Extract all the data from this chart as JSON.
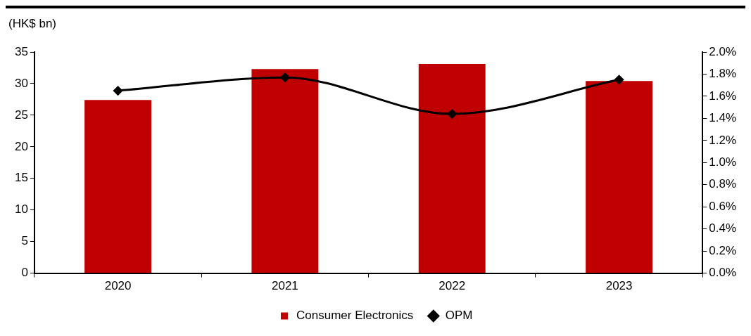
{
  "chart_data": {
    "type": "bar",
    "ylabel": "(HK$ bn)",
    "categories": [
      "2020",
      "2021",
      "2022",
      "2023"
    ],
    "series": [
      {
        "name": "Consumer Electronics",
        "color": "#c00000",
        "values": [
          27.4,
          32.3,
          33.1,
          30.4
        ]
      },
      {
        "name": "OPM",
        "type": "line",
        "axis": "y2",
        "color": "#000000",
        "marker": "diamond",
        "values": [
          1.65,
          1.77,
          1.44,
          1.75
        ]
      }
    ],
    "ylim": [
      0,
      35
    ],
    "yticks": [
      0,
      5,
      10,
      15,
      20,
      25,
      30,
      35
    ],
    "y2lim": [
      0,
      2
    ],
    "y2ticks": [
      {
        "value": 0,
        "label": "0.0%"
      },
      {
        "value": 0.2,
        "label": "0.2%"
      },
      {
        "value": 0.4,
        "label": "0.4%"
      },
      {
        "value": 0.6,
        "label": "0.6%"
      },
      {
        "value": 0.8,
        "label": "0.8%"
      },
      {
        "value": 1,
        "label": "1.0%"
      },
      {
        "value": 1.2,
        "label": "1.2%"
      },
      {
        "value": 1.4,
        "label": "1.4%"
      },
      {
        "value": 1.6,
        "label": "1.6%"
      },
      {
        "value": 1.8,
        "label": "1.8%"
      },
      {
        "value": 2,
        "label": "2.0%"
      }
    ],
    "legend": "bottom"
  }
}
